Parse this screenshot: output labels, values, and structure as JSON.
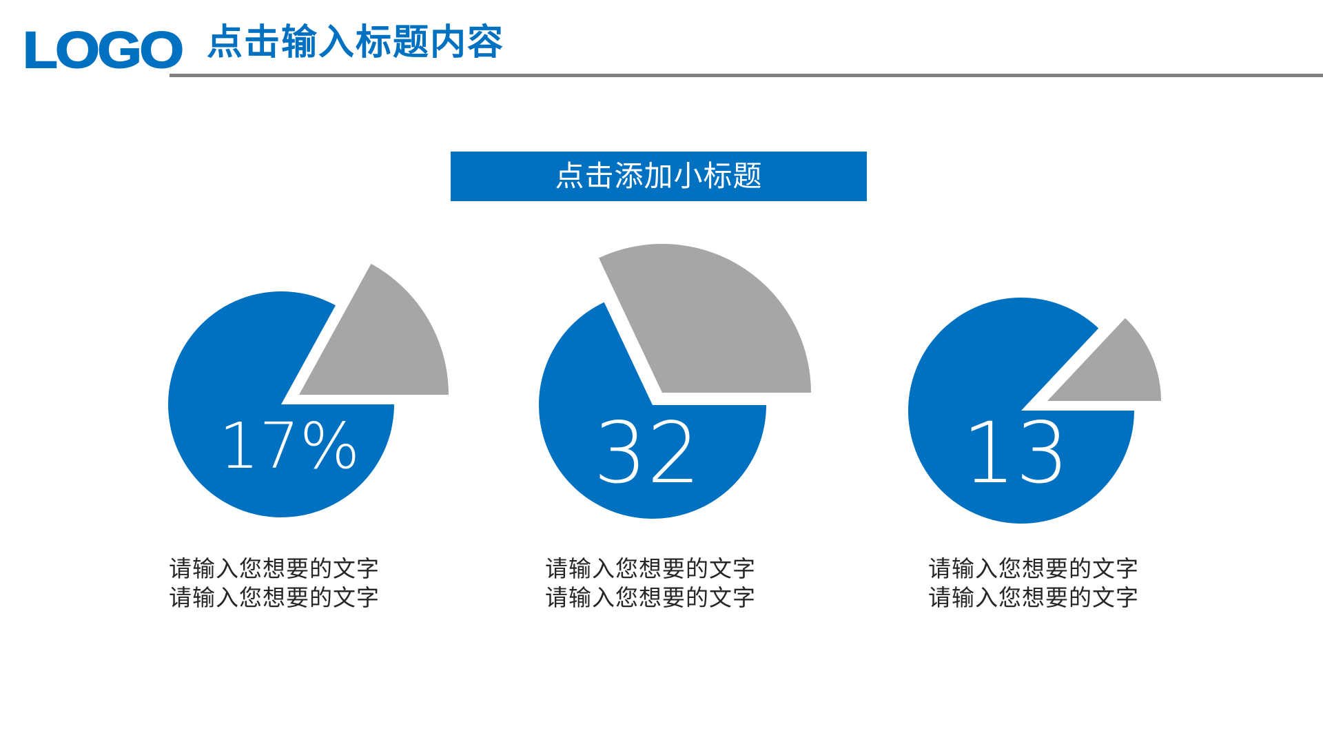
{
  "header": {
    "logo": "LOGO",
    "title": "点击输入标题内容"
  },
  "banner": {
    "label": "点击添加小标题"
  },
  "colors": {
    "primary": "#0070C0",
    "secondary": "#A6A6A6",
    "rule": "#808080",
    "text": "#262626"
  },
  "chart_data": [
    {
      "type": "pie",
      "title": "",
      "label": "17%",
      "slices": [
        {
          "name": "highlight",
          "value": 17,
          "color": "#A6A6A6",
          "exploded": true
        },
        {
          "name": "rest",
          "value": 83,
          "color": "#0070C0"
        }
      ],
      "description": [
        "请输入您想要的文字",
        "请输入您想要的文字"
      ]
    },
    {
      "type": "pie",
      "title": "",
      "label": "32",
      "slices": [
        {
          "name": "highlight",
          "value": 32,
          "color": "#A6A6A6",
          "exploded": true
        },
        {
          "name": "rest",
          "value": 68,
          "color": "#0070C0"
        }
      ],
      "description": [
        "请输入您想要的文字",
        "请输入您想要的文字"
      ]
    },
    {
      "type": "pie",
      "title": "",
      "label": "13",
      "slices": [
        {
          "name": "highlight",
          "value": 13,
          "color": "#A6A6A6",
          "exploded": true
        },
        {
          "name": "rest",
          "value": 87,
          "color": "#0070C0"
        }
      ],
      "description": [
        "请输入您想要的文字",
        "请输入您想要的文字"
      ]
    }
  ]
}
